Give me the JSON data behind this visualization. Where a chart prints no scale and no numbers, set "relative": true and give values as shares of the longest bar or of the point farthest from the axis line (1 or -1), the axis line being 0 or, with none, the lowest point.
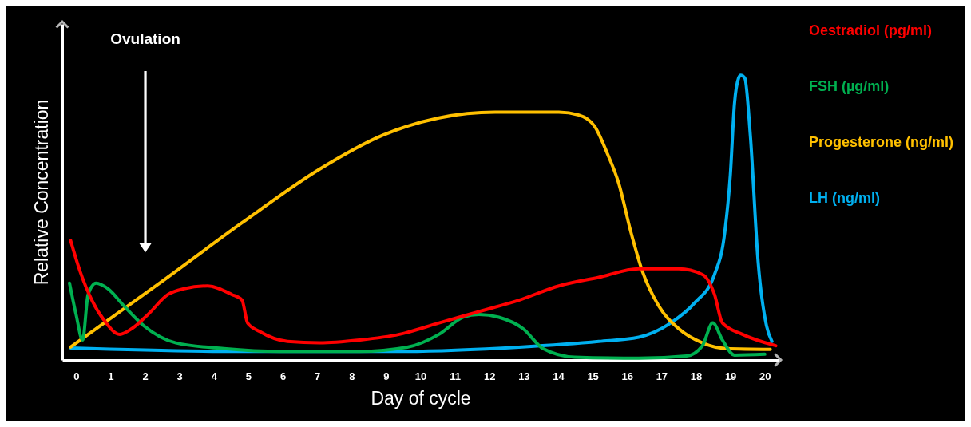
{
  "chart_data": {
    "type": "line",
    "relative": true,
    "xlabel": "Day of cycle",
    "ylabel": "Relative Concentration",
    "xlim": [
      -0.4,
      20.4
    ],
    "xticks": [
      0,
      1,
      2,
      3,
      4,
      5,
      6,
      7,
      8,
      9,
      10,
      11,
      12,
      13,
      14,
      15,
      16,
      17,
      18,
      19,
      20
    ],
    "legend": "right",
    "grid": false,
    "marker": "none",
    "line_style": "solid",
    "annotations": [
      "Ovulation"
    ],
    "series": [
      {
        "name": "Oestradiol (pg/ml)",
        "color": "#ff0000",
        "x": [
          -0.16,
          0.12,
          0.46,
          0.81,
          1.27,
          1.62,
          2.09,
          2.67,
          3.13,
          3.82,
          4.52,
          4.82,
          4.98,
          5.33,
          6.14,
          7.07,
          8.23,
          9.39,
          10.54,
          11.7,
          12.86,
          14.02,
          15.18,
          16.34,
          17.5,
          18.19,
          18.54,
          18.77,
          19.35,
          20.32
        ],
        "values": [
          0.42,
          0.31,
          0.21,
          0.14,
          0.09,
          0.11,
          0.16,
          0.23,
          0.25,
          0.26,
          0.23,
          0.21,
          0.13,
          0.1,
          0.065,
          0.06,
          0.07,
          0.09,
          0.13,
          0.17,
          0.21,
          0.26,
          0.29,
          0.32,
          0.32,
          0.3,
          0.23,
          0.13,
          0.09,
          0.05
        ]
      },
      {
        "name": "FSH (µg/ml)",
        "color": "#00b050",
        "x": [
          -0.19,
          0,
          0.19,
          0.35,
          0.58,
          0.93,
          1.39,
          1.97,
          2.9,
          4.29,
          5.91,
          8.23,
          9.62,
          10.54,
          11.24,
          11.7,
          12.28,
          12.98,
          13.56,
          14.48,
          16.34,
          17.73,
          18.19,
          18.49,
          18.77,
          19.12,
          20.0
        ],
        "values": [
          0.27,
          0.16,
          0.07,
          0.23,
          0.27,
          0.25,
          0.19,
          0.12,
          0.06,
          0.04,
          0.03,
          0.03,
          0.045,
          0.09,
          0.15,
          0.16,
          0.15,
          0.11,
          0.04,
          0.01,
          0.006,
          0.014,
          0.05,
          0.13,
          0.07,
          0.017,
          0.02
        ]
      },
      {
        "name": "Progesterone (ng/ml)",
        "color": "#ffc000",
        "x": [
          -0.16,
          2.43,
          4.8,
          7.07,
          8.92,
          10.54,
          12.17,
          14.02,
          14.6,
          15.06,
          15.41,
          15.76,
          16.11,
          16.45,
          16.92,
          17.5,
          18.19,
          18.89,
          20.16
        ],
        "values": [
          0.045,
          0.27,
          0.48,
          0.67,
          0.79,
          0.85,
          0.87,
          0.87,
          0.86,
          0.82,
          0.73,
          0.62,
          0.45,
          0.31,
          0.19,
          0.11,
          0.06,
          0.04,
          0.037
        ]
      },
      {
        "name": "LH (ng/ml)",
        "color": "#00b0f0",
        "x": [
          -0.16,
          4.75,
          9.39,
          12.86,
          15.18,
          16.34,
          17.27,
          17.96,
          18.54,
          18.84,
          19.0,
          19.12,
          19.24,
          19.3,
          19.42,
          19.58,
          19.81,
          20.05,
          20.21
        ],
        "values": [
          0.042,
          0.03,
          0.03,
          0.045,
          0.065,
          0.08,
          0.13,
          0.2,
          0.3,
          0.45,
          0.65,
          0.9,
          0.99,
          1.0,
          0.99,
          0.79,
          0.34,
          0.12,
          0.065
        ]
      }
    ]
  }
}
